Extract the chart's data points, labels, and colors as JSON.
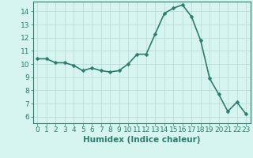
{
  "x": [
    0,
    1,
    2,
    3,
    4,
    5,
    6,
    7,
    8,
    9,
    10,
    11,
    12,
    13,
    14,
    15,
    16,
    17,
    18,
    19,
    20,
    21,
    22,
    23
  ],
  "y": [
    10.4,
    10.4,
    10.1,
    10.1,
    9.9,
    9.5,
    9.7,
    9.5,
    9.4,
    9.5,
    10.0,
    10.75,
    10.75,
    12.3,
    13.85,
    14.25,
    14.5,
    13.6,
    11.8,
    8.9,
    7.7,
    6.4,
    7.1,
    6.2
  ],
  "line_color": "#2d7d6e",
  "marker": "D",
  "marker_size": 2.5,
  "bg_color": "#d6f5f0",
  "grid_color": "#b8d8d4",
  "xlabel": "Humidex (Indice chaleur)",
  "xlim": [
    -0.5,
    23.5
  ],
  "ylim": [
    5.5,
    14.75
  ],
  "yticks": [
    6,
    7,
    8,
    9,
    10,
    11,
    12,
    13,
    14
  ],
  "xticks": [
    0,
    1,
    2,
    3,
    4,
    5,
    6,
    7,
    8,
    9,
    10,
    11,
    12,
    13,
    14,
    15,
    16,
    17,
    18,
    19,
    20,
    21,
    22,
    23
  ],
  "xlabel_fontsize": 7.5,
  "tick_fontsize": 6.5,
  "line_width": 1.2
}
